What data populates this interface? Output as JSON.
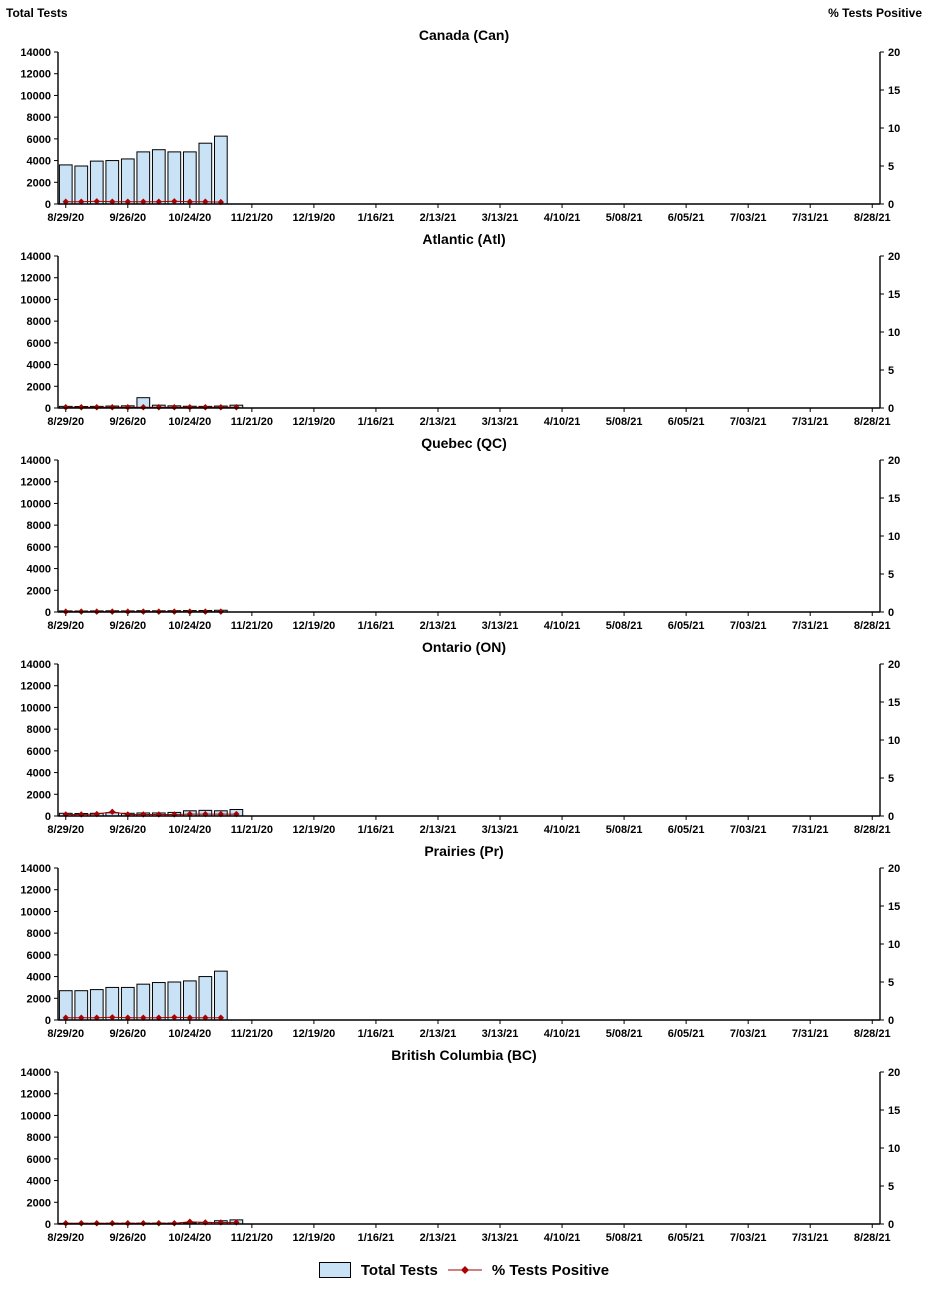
{
  "page": {
    "left_axis_title": "Total Tests",
    "right_axis_title": "% Tests Positive",
    "colors": {
      "bar_fill": "#C9E2F5",
      "bar_border": "#000000",
      "line_color": "#AA0000",
      "axis_color": "#000000"
    },
    "legend": {
      "bar_label": "Total Tests",
      "line_label": "% Tests Positive"
    }
  },
  "axes": {
    "left_ylim": [
      0,
      14000
    ],
    "left_ticks": [
      0,
      2000,
      4000,
      6000,
      8000,
      10000,
      12000,
      14000
    ],
    "right_ylim": [
      0,
      20
    ],
    "right_ticks": [
      0,
      5,
      10,
      15,
      20
    ],
    "weeks_total": 53,
    "x_tick_every": 4,
    "x_tick_labels": [
      "8/29/20",
      "9/26/20",
      "10/24/20",
      "11/21/20",
      "12/19/20",
      "1/16/21",
      "2/13/21",
      "3/13/21",
      "4/10/21",
      "5/08/21",
      "6/05/21",
      "7/03/21",
      "7/31/21",
      "8/28/21"
    ]
  },
  "chart_data": [
    {
      "type": "bar+line",
      "title": "Canada (Can)",
      "series": [
        {
          "name": "Total Tests",
          "axis": "left",
          "values": [
            3600,
            3500,
            3950,
            4000,
            4150,
            4800,
            5000,
            4800,
            4800,
            5600,
            6250
          ]
        },
        {
          "name": "% Tests Positive",
          "axis": "right",
          "values": [
            0.3,
            0.3,
            0.35,
            0.3,
            0.3,
            0.3,
            0.3,
            0.35,
            0.3,
            0.3,
            0.25
          ]
        }
      ]
    },
    {
      "type": "bar+line",
      "title": "Atlantic (Atl)",
      "series": [
        {
          "name": "Total Tests",
          "axis": "left",
          "values": [
            150,
            140,
            150,
            180,
            200,
            950,
            260,
            200,
            160,
            150,
            180,
            260
          ]
        },
        {
          "name": "% Tests Positive",
          "axis": "right",
          "values": [
            0.1,
            0.1,
            0.1,
            0.1,
            0.1,
            0.1,
            0.1,
            0.1,
            0.1,
            0.1,
            0.1,
            0.1
          ]
        }
      ]
    },
    {
      "type": "bar+line",
      "title": "Quebec (QC)",
      "series": [
        {
          "name": "Total Tests",
          "axis": "left",
          "values": [
            100,
            90,
            100,
            110,
            100,
            120,
            110,
            120,
            130,
            140,
            160
          ]
        },
        {
          "name": "% Tests Positive",
          "axis": "right",
          "values": [
            0.05,
            0.05,
            0.05,
            0.05,
            0.05,
            0.05,
            0.05,
            0.05,
            0.05,
            0.05,
            0.05
          ]
        }
      ]
    },
    {
      "type": "bar+line",
      "title": "Ontario (ON)",
      "series": [
        {
          "name": "Total Tests",
          "axis": "left",
          "values": [
            250,
            230,
            250,
            300,
            250,
            280,
            280,
            330,
            480,
            520,
            480,
            600
          ]
        },
        {
          "name": "% Tests Positive",
          "axis": "right",
          "values": [
            0.2,
            0.2,
            0.25,
            0.55,
            0.2,
            0.2,
            0.2,
            0.2,
            0.25,
            0.25,
            0.25,
            0.25
          ]
        }
      ]
    },
    {
      "type": "bar+line",
      "title": "Prairies (Pr)",
      "series": [
        {
          "name": "Total Tests",
          "axis": "left",
          "values": [
            2700,
            2700,
            2800,
            3000,
            3000,
            3300,
            3450,
            3500,
            3600,
            4000,
            4500
          ]
        },
        {
          "name": "% Tests Positive",
          "axis": "right",
          "values": [
            0.3,
            0.3,
            0.3,
            0.35,
            0.3,
            0.3,
            0.3,
            0.35,
            0.3,
            0.3,
            0.3
          ]
        }
      ]
    },
    {
      "type": "bar+line",
      "title": "British Columbia (BC)",
      "series": [
        {
          "name": "Total Tests",
          "axis": "left",
          "values": [
            60,
            60,
            60,
            70,
            70,
            80,
            80,
            90,
            100,
            150,
            300,
            380
          ]
        },
        {
          "name": "% Tests Positive",
          "axis": "right",
          "values": [
            0.1,
            0.1,
            0.1,
            0.1,
            0.1,
            0.1,
            0.1,
            0.1,
            0.3,
            0.2,
            0.2,
            0.2
          ]
        }
      ]
    }
  ]
}
